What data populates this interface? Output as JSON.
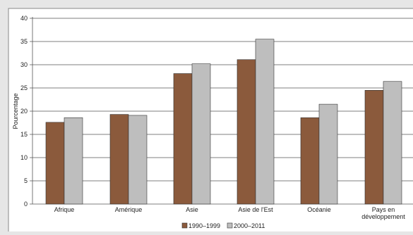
{
  "chart_data": {
    "type": "bar",
    "categories": [
      [
        "Afrique"
      ],
      [
        "Amérique"
      ],
      [
        "Asie"
      ],
      [
        "Asie de l'Est"
      ],
      [
        "Océanie"
      ],
      [
        "Pays en",
        "développement"
      ]
    ],
    "series": [
      {
        "name": "1990–1999",
        "color": "#8b5a3c",
        "values": [
          17.6,
          19.3,
          28.1,
          31.1,
          18.6,
          24.5
        ]
      },
      {
        "name": "2000–2011",
        "color": "#bebebe",
        "values": [
          18.6,
          19.1,
          30.2,
          35.5,
          21.5,
          26.4
        ]
      }
    ],
    "ylabel": "Pourcentage",
    "ylim": [
      0,
      40
    ],
    "yticks": [
      0,
      5,
      10,
      15,
      20,
      25,
      30,
      35,
      40
    ],
    "grid": true,
    "legend": "bottom-center",
    "colors": {
      "background": "#e6e6e6",
      "plot": "#ffffff",
      "grid": "#555555",
      "bar_stroke": "#333333"
    }
  }
}
